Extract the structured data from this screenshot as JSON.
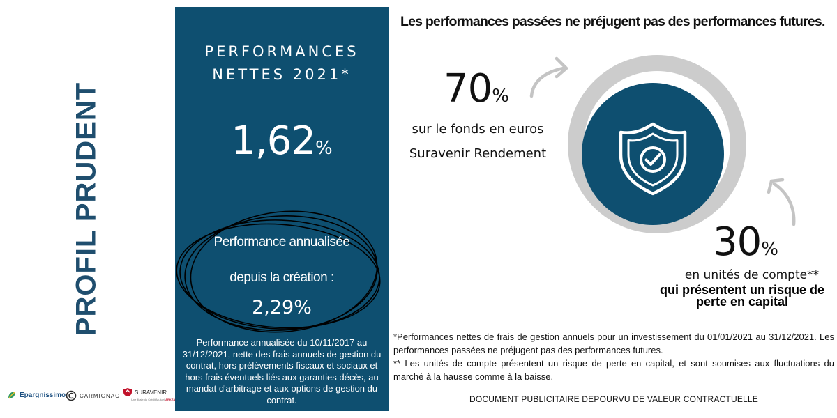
{
  "profile": {
    "title": "PROFIL PRUDENT"
  },
  "logos": {
    "epargnissimo": "Epargnissimo",
    "carmignac": "CARMIGNAC",
    "suravenir": "SURAVENIR",
    "suravenir_sub_prefix": "Une filiale du Crédit Mutuel",
    "suravenir_sub_brand": "ARKÉA"
  },
  "panel": {
    "heading": "PERFORMANCES\nNETTES 2021*",
    "net_performance_value": "1,62",
    "net_performance_unit": "%",
    "annualized_line1": "Performance annualisée",
    "annualized_line2": "depuis la création :",
    "annualized_value": "2,29%",
    "note": "Performance annualisée du 10/11/2017 au 31/12/2021, nette des frais annuels de gestion du contrat, hors prélèvements fiscaux et sociaux et hors frais éventuels liés aux garanties décès, au mandat d'arbitrage et aux options de gestion du contrat."
  },
  "disclaimer_top": "Les performances passées ne préjugent pas des performances futures.",
  "allocation": {
    "euro_fund": {
      "value": "70",
      "unit": "%",
      "label_line1": "sur le fonds en euros",
      "label_line2": "Suravenir Rendement"
    },
    "unit_linked": {
      "value": "30",
      "unit": "%",
      "label_line1": "en unités de compte**",
      "label_line2": "qui présentent un risque de perte en capital"
    },
    "center_icon": "shield-check-icon"
  },
  "footnotes": [
    "*Performances nettes de frais de gestion annuels pour un investissement du 01/01/2021 au 31/12/2021. Les performances passées ne préjugent pas des performances futures.",
    "** Les unités de compte présentent un risque de perte en capital, et sont soumises aux fluctuations du marché à la hausse comme à la baisse."
  ],
  "document_notice": "DOCUMENT PUBLICITAIRE DEPOURVU DE VALEUR CONTRACTUELLE",
  "colors": {
    "primary_blue": "#0e4f70",
    "title_blue": "#1f4e6e",
    "ring_grey": "#cccccc",
    "arrow_grey": "#c4c4c4",
    "suravenir_red": "#c2122b"
  }
}
